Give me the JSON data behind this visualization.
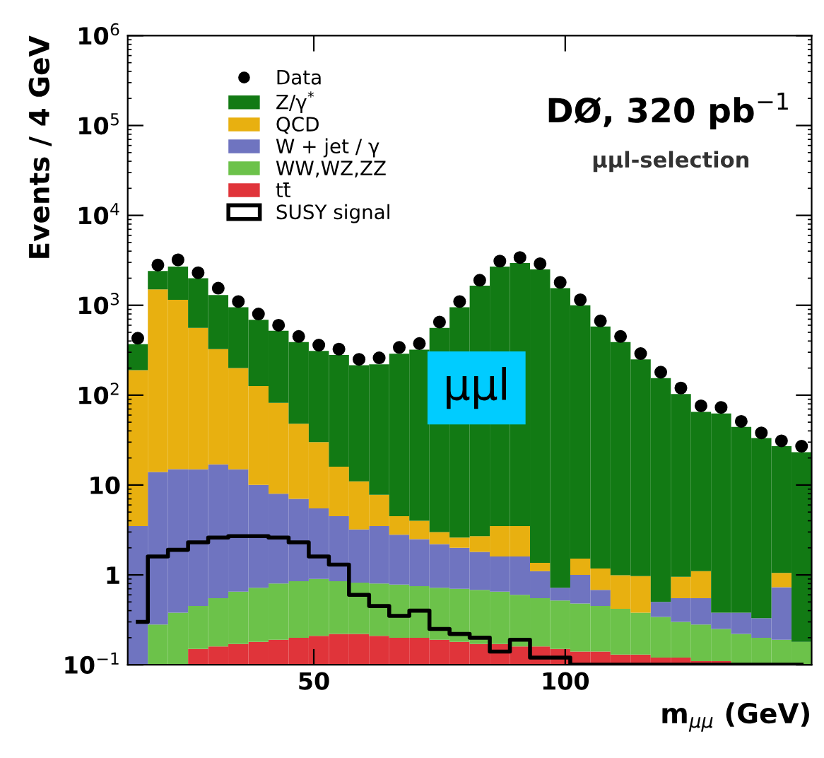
{
  "chart_data": {
    "type": "bar",
    "stacked": true,
    "log": "y",
    "legend": "top left",
    "xlabel": "m$_{μμ}$ (GeV)",
    "ylabel": "Events / 4 GeV",
    "annotations": [
      "DØ, 320 pb$^{−1}$",
      "μμl-selection",
      "μμl"
    ],
    "x": [
      15,
      19,
      23,
      27,
      31,
      35,
      39,
      43,
      47,
      51,
      55,
      59,
      63,
      67,
      71,
      75,
      79,
      83,
      87,
      91,
      95,
      99,
      103,
      107,
      111,
      115,
      119,
      123,
      127,
      131,
      135,
      139,
      143,
      147
    ],
    "xlim": [
      13,
      149
    ],
    "xticks": [
      50,
      100
    ],
    "ylim": [
      0.1,
      1000000
    ],
    "yticks": [
      {
        "value": 0.1,
        "label": "10$^{−1}$"
      },
      1,
      10,
      {
        "value": 100,
        "label": "10$^{2}$"
      },
      {
        "value": 1000,
        "label": "10$^{3}$"
      },
      {
        "value": 10000,
        "label": "10$^{4}$"
      },
      {
        "value": 100000,
        "label": "10$^{5}$"
      },
      {
        "value": 1000000,
        "label": "10$^{6}$"
      }
    ],
    "series": [
      {
        "name": "Data",
        "type": "scatter",
        "marker": "circle",
        "color": "#000000",
        "values": [
          430,
          2800,
          3200,
          2300,
          1550,
          1100,
          800,
          600,
          450,
          360,
          325,
          250,
          260,
          340,
          375,
          650,
          1100,
          1900,
          3100,
          3400,
          2900,
          1800,
          1150,
          670,
          450,
          290,
          180,
          120,
          76,
          73,
          51,
          38,
          31,
          27
        ]
      },
      {
        "name": "tt̄",
        "color": "#e0343a",
        "values": [
          null,
          null,
          null,
          0.15,
          0.16,
          0.17,
          0.18,
          0.19,
          0.2,
          0.21,
          0.22,
          0.22,
          0.21,
          0.2,
          0.2,
          0.19,
          0.18,
          0.17,
          0.17,
          0.16,
          0.16,
          0.15,
          0.14,
          0.14,
          0.13,
          0.13,
          0.12,
          0.12,
          0.11,
          0.11,
          null,
          null,
          null,
          null
        ]
      },
      {
        "name": "WW,WZ,ZZ",
        "color": "#6cc24a",
        "values": [
          null,
          0.28,
          0.38,
          0.3,
          0.39,
          0.48,
          0.54,
          0.61,
          0.65,
          0.69,
          0.63,
          0.6,
          0.59,
          0.58,
          0.55,
          0.53,
          0.52,
          0.51,
          0.48,
          0.44,
          0.39,
          0.37,
          0.34,
          0.31,
          0.29,
          0.25,
          0.22,
          0.18,
          0.17,
          0.14,
          0.22,
          0.2,
          0.19,
          0.18
        ]
      },
      {
        "name": "W + jet / γ",
        "color": "#6f74c0",
        "values": [
          3.5,
          13.7,
          14.6,
          14.5,
          16.4,
          14.3,
          9.3,
          7.2,
          6.15,
          4.6,
          3.65,
          2.38,
          2.7,
          2.02,
          1.75,
          1.48,
          1.3,
          1.12,
          0.95,
          1.0,
          0.55,
          0.2,
          0.52,
          0.23,
          null,
          null,
          0.16,
          0.25,
          0.27,
          0.13,
          0.16,
          0.13,
          0.54,
          null
        ]
      },
      {
        "name": "QCD",
        "color": "#e8b010",
        "values": [
          186,
          1490,
          1135,
          545,
          308,
          185,
          116,
          74,
          41,
          24.5,
          11.5,
          7.8,
          4.3,
          1.7,
          1.5,
          0.8,
          0.6,
          0.9,
          1.9,
          1.9,
          0.26,
          null,
          0.52,
          0.5,
          0.57,
          0.59,
          null,
          0.4,
          0.55,
          null,
          null,
          null,
          0.32,
          null
        ]
      },
      {
        "name": "Z/γ$^{*}$",
        "color": "#127a14",
        "values": [
          180,
          900,
          1550,
          1440,
          975,
          750,
          564,
          438,
          342,
          280,
          264,
          204,
          212,
          285,
          316,
          557,
          947,
          1647,
          2696,
          2946,
          2499,
          1549,
          998,
          579,
          389,
          249,
          154,
          102,
          64,
          62,
          44,
          33,
          26,
          23
        ]
      },
      {
        "name": "SUSY signal",
        "type": "step",
        "color": "#000000",
        "values": [
          0.3,
          1.6,
          1.9,
          2.3,
          2.6,
          2.7,
          2.7,
          2.6,
          2.3,
          1.6,
          1.3,
          0.6,
          0.45,
          0.35,
          0.4,
          0.25,
          0.22,
          0.2,
          0.14,
          0.19,
          0.12,
          0.12,
          0.1,
          0.1,
          0.1,
          0.1,
          0.1,
          0.1,
          0.1,
          0.1,
          0.1,
          0.1,
          0.1,
          0.1
        ]
      }
    ]
  }
}
